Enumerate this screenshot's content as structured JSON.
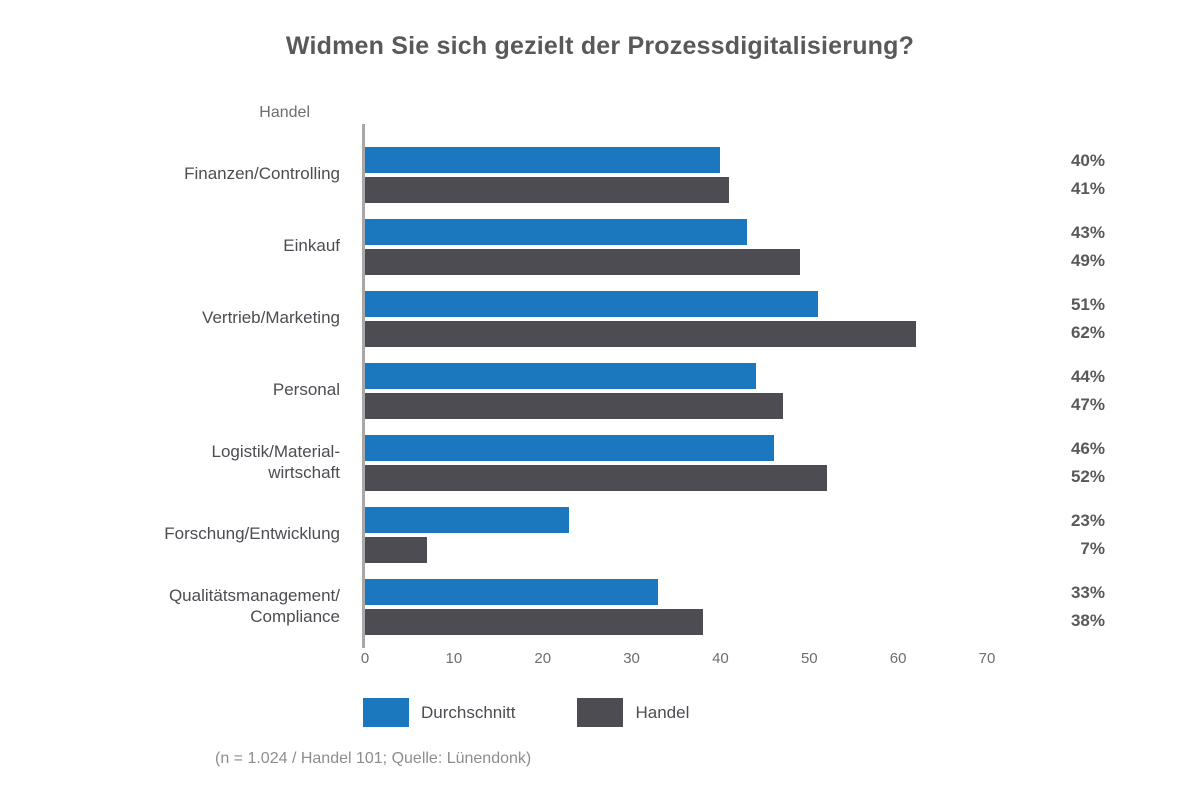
{
  "title": "Widmen Sie sich gezielt der Prozessdigitalisierung?",
  "axis_top_label": "Handel",
  "colors": {
    "durchschnitt_blue": "#1b78be",
    "handel_dark": "#4c4c52",
    "axis_gray": "#a8a8aa",
    "text_dark": "#4c4c52",
    "text_muted": "#8d8d90"
  },
  "chart_data": {
    "type": "bar",
    "orientation": "horizontal",
    "title": "Widmen Sie sich gezielt der Prozessdigitalisierung?",
    "categories": [
      "Finanzen/Controlling",
      "Einkauf",
      "Vertrieb/Marketing",
      "Personal",
      "Logistik/Material-\nwirtschaft",
      "Forschung/Entwicklung",
      "Qualitätsmanagement/\nCompliance"
    ],
    "series": [
      {
        "name": "Durchschnitt",
        "color": "#1b78be",
        "values": [
          40,
          43,
          51,
          44,
          46,
          23,
          33
        ]
      },
      {
        "name": "Handel",
        "color": "#4c4c52",
        "values": [
          41,
          49,
          62,
          47,
          52,
          7,
          38
        ]
      }
    ],
    "value_labels": [
      [
        "40%",
        "41%"
      ],
      [
        "43%",
        "49%"
      ],
      [
        "51%",
        "62%"
      ],
      [
        "44%",
        "47%"
      ],
      [
        "46%",
        "52%"
      ],
      [
        "23%",
        "7%"
      ],
      [
        "33%",
        "38%"
      ]
    ],
    "xlim": [
      0,
      70
    ],
    "x_ticks": [
      0,
      10,
      20,
      30,
      40,
      50,
      60,
      70
    ],
    "grid": false,
    "legend_position": "bottom",
    "legend": [
      "Durchschnitt",
      "Handel"
    ],
    "footnote": "(n = 1.024 / Handel 101; Quelle: Lünendonk)"
  }
}
